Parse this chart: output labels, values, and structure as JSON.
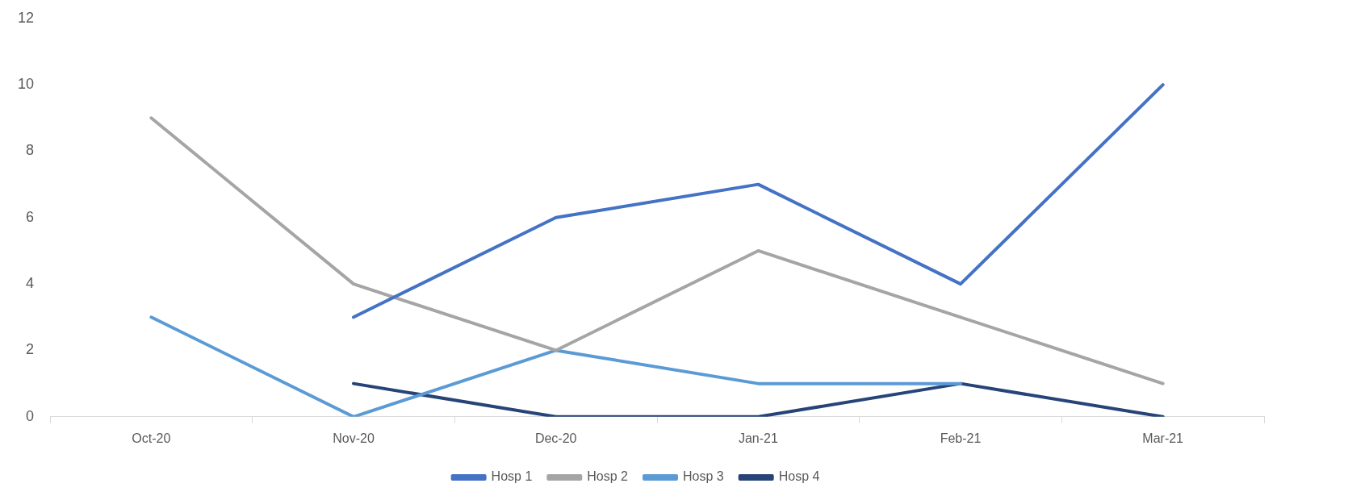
{
  "chart_data": {
    "type": "line",
    "categories": [
      "Oct-20",
      "Nov-20",
      "Dec-20",
      "Jan-21",
      "Feb-21",
      "Mar-21"
    ],
    "series": [
      {
        "name": "Hosp 1",
        "color": "#4472c4",
        "values": [
          null,
          3,
          6,
          7,
          4,
          10
        ]
      },
      {
        "name": "Hosp 2",
        "color": "#a5a5a5",
        "values": [
          9,
          4,
          2,
          5,
          3,
          1
        ]
      },
      {
        "name": "Hosp 3",
        "color": "#5b9bd5",
        "values": [
          3,
          0,
          2,
          1,
          1,
          null
        ]
      },
      {
        "name": "Hosp 4",
        "color": "#264478",
        "values": [
          null,
          1,
          0,
          0,
          1,
          0
        ]
      }
    ],
    "ylim": [
      0,
      12
    ],
    "yticks": [
      0,
      2,
      4,
      6,
      8,
      10,
      12
    ],
    "grid": false,
    "legend": "bottom",
    "marker": "none",
    "line_style": "solid"
  }
}
